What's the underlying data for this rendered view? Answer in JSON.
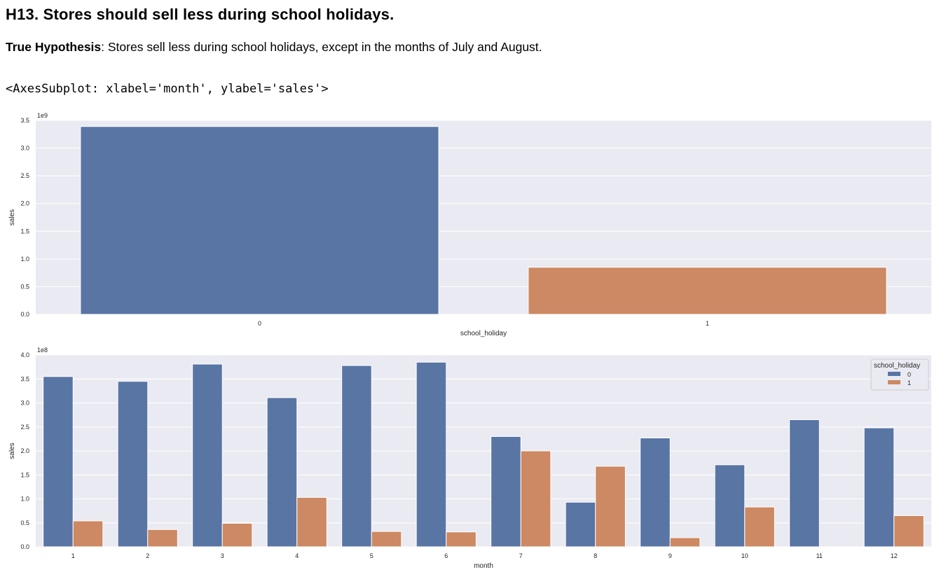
{
  "heading": "H13. Stores should sell less during school holidays.",
  "paragraph": {
    "bold": "True Hypothesis",
    "rest": ": Stores sell less during school holidays, except in the months of July and August."
  },
  "output_text": "<AxesSubplot: xlabel='month', ylabel='sales'>",
  "colors": {
    "plot_bg": "#eaeaf2",
    "series_0": "#5975a4",
    "series_1": "#cc8963",
    "grid": "#ffffff"
  },
  "chart_data": [
    {
      "type": "bar",
      "categories": [
        "0",
        "1"
      ],
      "values": [
        3.39,
        0.85
      ],
      "scale_label": "1e9",
      "xlabel": "school_holiday",
      "ylabel": "sales",
      "ylim": [
        0,
        3.5
      ],
      "yticks": [
        "0.0",
        "0.5",
        "1.0",
        "1.5",
        "2.0",
        "2.5",
        "3.0",
        "3.5"
      ],
      "grid": true
    },
    {
      "type": "bar",
      "categories": [
        "1",
        "2",
        "3",
        "4",
        "5",
        "6",
        "7",
        "8",
        "9",
        "10",
        "11",
        "12"
      ],
      "series": [
        {
          "name": "0",
          "values": [
            3.55,
            3.45,
            3.81,
            3.11,
            3.78,
            3.85,
            2.3,
            0.93,
            2.27,
            1.71,
            2.65,
            2.48
          ]
        },
        {
          "name": "1",
          "values": [
            0.54,
            0.36,
            0.49,
            1.03,
            0.32,
            0.31,
            2.0,
            1.68,
            0.19,
            0.83,
            0.0,
            0.65
          ]
        }
      ],
      "scale_label": "1e8",
      "xlabel": "month",
      "ylabel": "sales",
      "ylim": [
        0,
        4.0
      ],
      "yticks": [
        "0.0",
        "0.5",
        "1.0",
        "1.5",
        "2.0",
        "2.5",
        "3.0",
        "3.5",
        "4.0"
      ],
      "legend": {
        "title": "school_holiday",
        "placement": "top-right"
      },
      "grid": true
    }
  ]
}
